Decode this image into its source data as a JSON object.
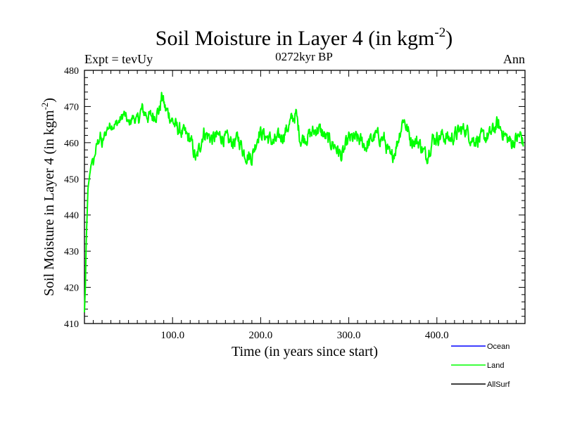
{
  "chart_data": {
    "type": "line",
    "title": "Soil Moisture in Layer 4 (in kgm",
    "title_sup": "-2",
    "title_close": ")",
    "subtitle": "0272kyr BP",
    "left_label": "Expt = tevUy",
    "right_label": "Ann",
    "xlabel": "Time (in years since start)",
    "ylabel": "Soil Moisture in Layer 4 (in kgm",
    "ylabel_sup": "-2",
    "ylabel_close": ")",
    "xlim": [
      0,
      500
    ],
    "ylim": [
      410,
      480
    ],
    "xticks": [
      100,
      200,
      300,
      400
    ],
    "xtick_labels": [
      "100.0",
      "200.0",
      "300.0",
      "400.0"
    ],
    "yticks": [
      410,
      420,
      430,
      440,
      450,
      460,
      470,
      480
    ],
    "ytick_labels": [
      "410",
      "420",
      "430",
      "440",
      "450",
      "460",
      "470",
      "480"
    ],
    "legend": [
      {
        "name": "Ocean",
        "color": "#0000ff"
      },
      {
        "name": "Land",
        "color": "#00ff00"
      },
      {
        "name": "AllSurf",
        "color": "#000000"
      }
    ],
    "series": [
      {
        "name": "Land",
        "color": "#00ff00",
        "keypoints": [
          [
            0,
            413
          ],
          [
            1,
            420
          ],
          [
            2,
            432
          ],
          [
            3,
            440
          ],
          [
            4,
            447
          ],
          [
            6,
            451
          ],
          [
            8,
            455
          ],
          [
            10,
            454
          ],
          [
            12,
            457
          ],
          [
            15,
            460
          ],
          [
            18,
            462
          ],
          [
            20,
            459
          ],
          [
            23,
            462
          ],
          [
            26,
            464
          ],
          [
            30,
            465
          ],
          [
            35,
            465
          ],
          [
            40,
            466
          ],
          [
            45,
            468
          ],
          [
            50,
            465
          ],
          [
            55,
            467
          ],
          [
            60,
            466
          ],
          [
            65,
            469
          ],
          [
            70,
            468
          ],
          [
            75,
            467
          ],
          [
            80,
            468
          ],
          [
            85,
            469
          ],
          [
            88,
            473
          ],
          [
            92,
            469
          ],
          [
            96,
            468
          ],
          [
            100,
            466
          ],
          [
            105,
            464
          ],
          [
            110,
            463
          ],
          [
            115,
            462
          ],
          [
            120,
            461
          ],
          [
            127,
            455
          ],
          [
            135,
            463
          ],
          [
            145,
            461
          ],
          [
            155,
            462
          ],
          [
            165,
            460
          ],
          [
            175,
            461
          ],
          [
            182,
            457
          ],
          [
            190,
            456
          ],
          [
            198,
            463
          ],
          [
            205,
            462
          ],
          [
            215,
            460
          ],
          [
            225,
            462
          ],
          [
            235,
            466
          ],
          [
            240,
            468
          ],
          [
            245,
            461
          ],
          [
            255,
            462
          ],
          [
            265,
            464
          ],
          [
            275,
            461
          ],
          [
            285,
            459
          ],
          [
            292,
            456
          ],
          [
            300,
            461
          ],
          [
            310,
            461
          ],
          [
            320,
            459
          ],
          [
            330,
            462
          ],
          [
            340,
            461
          ],
          [
            348,
            455
          ],
          [
            355,
            460
          ],
          [
            362,
            467
          ],
          [
            370,
            461
          ],
          [
            380,
            460
          ],
          [
            388,
            456
          ],
          [
            395,
            461
          ],
          [
            405,
            462
          ],
          [
            415,
            461
          ],
          [
            425,
            463
          ],
          [
            432,
            464
          ],
          [
            440,
            461
          ],
          [
            450,
            461
          ],
          [
            460,
            462
          ],
          [
            468,
            465
          ],
          [
            475,
            463
          ],
          [
            480,
            461
          ],
          [
            485,
            460
          ],
          [
            490,
            461
          ],
          [
            495,
            462
          ],
          [
            498,
            460
          ]
        ]
      }
    ]
  }
}
